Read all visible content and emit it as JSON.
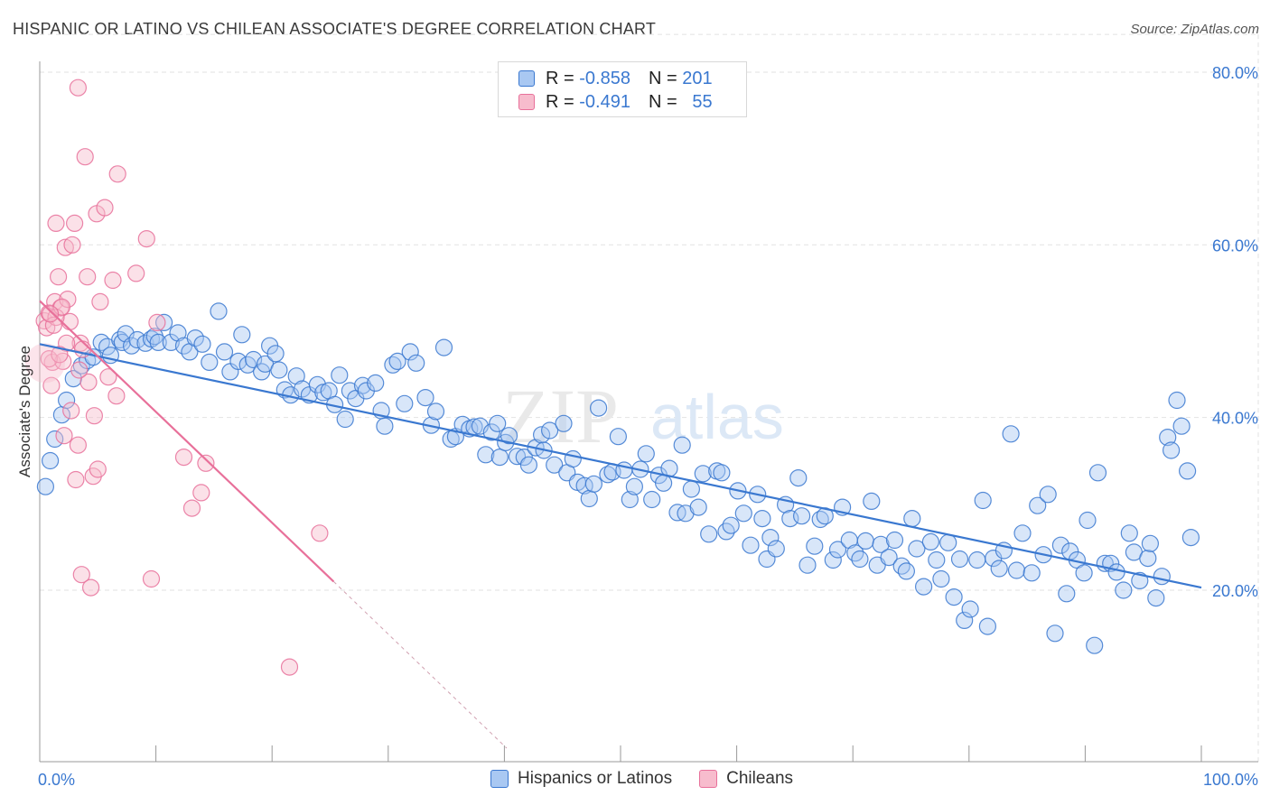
{
  "title": "HISPANIC OR LATINO VS CHILEAN ASSOCIATE'S DEGREE CORRELATION CHART",
  "source": "Source: ZipAtlas.com",
  "watermark": {
    "zip": "ZIP",
    "atlas": "atlas"
  },
  "legend_top": {
    "rows": [
      {
        "r_label": "R =",
        "r_value": "-0.858",
        "n_label": "N =",
        "n_value": "201"
      },
      {
        "r_label": "R =",
        "r_value": "-0.491",
        "n_label": "N =",
        "n_value": "55"
      }
    ]
  },
  "colors": {
    "blue": "#3a78d0",
    "blue_fill": "#a9c8f2",
    "pink": "#e8709a",
    "pink_fill": "#f7bccd",
    "grid": "#e2e2e2",
    "axis_label": "#3a78d0"
  },
  "chart_data": {
    "type": "scatter",
    "xlabel": "",
    "ylabel": "Associate's Degree",
    "xlim": [
      0,
      100
    ],
    "ylim": [
      0,
      85
    ],
    "x_tick_labels": [
      {
        "value": 0,
        "label": "0.0%"
      },
      {
        "value": 100,
        "label": "100.0%"
      }
    ],
    "y_tick_labels": [
      {
        "value": 20,
        "label": "20.0%"
      },
      {
        "value": 40,
        "label": "40.0%"
      },
      {
        "value": 60,
        "label": "60.0%"
      },
      {
        "value": 80,
        "label": "80.0%"
      }
    ],
    "grid": true,
    "legend": "bottom",
    "series": [
      {
        "name": "Hispanics or Latinos",
        "color": "#3a78d0",
        "trend": {
          "x0": 0,
          "y0": 48.5,
          "x1": 100,
          "y1": 20.3
        },
        "points": [
          [
            0.5,
            32
          ],
          [
            0.9,
            35
          ],
          [
            1.3,
            37.5
          ],
          [
            1.9,
            40.3
          ],
          [
            2.3,
            42
          ],
          [
            2.9,
            44.5
          ],
          [
            3.6,
            46
          ],
          [
            4.1,
            46.6
          ],
          [
            4.6,
            47
          ],
          [
            5.3,
            48.7
          ],
          [
            5.8,
            48.2
          ],
          [
            6.1,
            47.2
          ],
          [
            6.9,
            49
          ],
          [
            7.1,
            48.7
          ],
          [
            7.4,
            49.7
          ],
          [
            7.9,
            48.3
          ],
          [
            8.4,
            49
          ],
          [
            9.1,
            48.6
          ],
          [
            9.6,
            49.1
          ],
          [
            9.9,
            49.4
          ],
          [
            10.2,
            48.7
          ],
          [
            10.7,
            51
          ],
          [
            11.3,
            48.7
          ],
          [
            11.9,
            49.8
          ],
          [
            12.4,
            48.3
          ],
          [
            12.9,
            47.6
          ],
          [
            13.4,
            49.2
          ],
          [
            14.0,
            48.5
          ],
          [
            14.6,
            46.4
          ],
          [
            15.4,
            52.3
          ],
          [
            15.9,
            47.6
          ],
          [
            16.4,
            45.3
          ],
          [
            17.1,
            46.5
          ],
          [
            17.4,
            49.6
          ],
          [
            17.9,
            46.1
          ],
          [
            18.4,
            46.7
          ],
          [
            19.1,
            45.3
          ],
          [
            19.4,
            46.2
          ],
          [
            19.8,
            48.3
          ],
          [
            20.3,
            47.4
          ],
          [
            20.6,
            45.5
          ],
          [
            21.1,
            43.2
          ],
          [
            21.6,
            42.6
          ],
          [
            22.1,
            44.8
          ],
          [
            22.6,
            43.3
          ],
          [
            23.2,
            42.6
          ],
          [
            23.9,
            43.8
          ],
          [
            24.4,
            42.9
          ],
          [
            24.9,
            43.1
          ],
          [
            25.4,
            41.5
          ],
          [
            25.8,
            44.9
          ],
          [
            26.3,
            39.8
          ],
          [
            26.7,
            43.1
          ],
          [
            27.2,
            42.2
          ],
          [
            27.8,
            43.7
          ],
          [
            28.1,
            43.1
          ],
          [
            28.9,
            44
          ],
          [
            29.4,
            40.8
          ],
          [
            29.7,
            39
          ],
          [
            30.4,
            46.1
          ],
          [
            30.8,
            46.5
          ],
          [
            31.4,
            41.6
          ],
          [
            31.9,
            47.6
          ],
          [
            32.4,
            46.3
          ],
          [
            33.2,
            42.3
          ],
          [
            33.7,
            39.1
          ],
          [
            34.1,
            40.7
          ],
          [
            34.8,
            48.1
          ],
          [
            35.4,
            37.5
          ],
          [
            35.8,
            37.8
          ],
          [
            36.4,
            39.2
          ],
          [
            37.0,
            38.7
          ],
          [
            37.4,
            38.9
          ],
          [
            37.9,
            39
          ],
          [
            38.4,
            35.7
          ],
          [
            38.9,
            38.3
          ],
          [
            39.4,
            39.3
          ],
          [
            39.6,
            35.4
          ],
          [
            40.1,
            37.1
          ],
          [
            40.4,
            37.9
          ],
          [
            41.1,
            35.5
          ],
          [
            41.7,
            35.4
          ],
          [
            42.1,
            34.5
          ],
          [
            42.7,
            36.5
          ],
          [
            43.2,
            38
          ],
          [
            43.4,
            36.2
          ],
          [
            43.9,
            38.5
          ],
          [
            44.3,
            34.5
          ],
          [
            45.1,
            39.3
          ],
          [
            45.4,
            33.6
          ],
          [
            45.9,
            35.2
          ],
          [
            46.3,
            32.5
          ],
          [
            46.9,
            32.1
          ],
          [
            47.3,
            30.6
          ],
          [
            47.7,
            32.3
          ],
          [
            48.1,
            41.1
          ],
          [
            48.9,
            33.4
          ],
          [
            49.3,
            33.7
          ],
          [
            49.8,
            37.8
          ],
          [
            50.3,
            33.9
          ],
          [
            50.8,
            30.5
          ],
          [
            51.2,
            32
          ],
          [
            51.7,
            34
          ],
          [
            52.2,
            35.8
          ],
          [
            52.7,
            30.5
          ],
          [
            53.3,
            33.3
          ],
          [
            53.7,
            32.4
          ],
          [
            54.2,
            34.1
          ],
          [
            54.9,
            29
          ],
          [
            55.3,
            36.8
          ],
          [
            55.6,
            28.9
          ],
          [
            56.1,
            31.7
          ],
          [
            56.7,
            29.6
          ],
          [
            57.1,
            33.5
          ],
          [
            57.6,
            26.5
          ],
          [
            58.3,
            33.8
          ],
          [
            58.7,
            33.6
          ],
          [
            59.1,
            26.8
          ],
          [
            59.5,
            27.5
          ],
          [
            60.1,
            31.5
          ],
          [
            60.6,
            28.9
          ],
          [
            61.2,
            25.2
          ],
          [
            61.8,
            31.1
          ],
          [
            62.2,
            28.3
          ],
          [
            62.6,
            23.6
          ],
          [
            62.9,
            26.1
          ],
          [
            63.4,
            24.8
          ],
          [
            64.2,
            29.9
          ],
          [
            64.6,
            28.3
          ],
          [
            65.3,
            33
          ],
          [
            65.6,
            28.6
          ],
          [
            66.1,
            22.9
          ],
          [
            66.7,
            25.1
          ],
          [
            67.2,
            28.2
          ],
          [
            67.6,
            28.6
          ],
          [
            68.3,
            23.5
          ],
          [
            68.7,
            24.7
          ],
          [
            69.1,
            29.6
          ],
          [
            69.7,
            25.8
          ],
          [
            70.2,
            24.3
          ],
          [
            70.6,
            23.6
          ],
          [
            71.1,
            25.7
          ],
          [
            71.6,
            30.3
          ],
          [
            72.1,
            22.9
          ],
          [
            72.4,
            25.3
          ],
          [
            73.1,
            23.8
          ],
          [
            73.6,
            25.8
          ],
          [
            74.2,
            22.8
          ],
          [
            74.6,
            22.2
          ],
          [
            75.1,
            28.3
          ],
          [
            75.5,
            24.8
          ],
          [
            76.1,
            20.4
          ],
          [
            76.7,
            25.6
          ],
          [
            77.2,
            23.5
          ],
          [
            77.6,
            21.3
          ],
          [
            78.2,
            25.5
          ],
          [
            78.7,
            19.2
          ],
          [
            79.2,
            23.6
          ],
          [
            79.6,
            16.5
          ],
          [
            80.1,
            17.8
          ],
          [
            80.7,
            23.5
          ],
          [
            81.2,
            30.4
          ],
          [
            81.6,
            15.8
          ],
          [
            82.1,
            23.7
          ],
          [
            82.6,
            22.5
          ],
          [
            83.0,
            24.6
          ],
          [
            83.6,
            38.1
          ],
          [
            84.1,
            22.3
          ],
          [
            84.6,
            26.6
          ],
          [
            85.4,
            22
          ],
          [
            85.9,
            29.8
          ],
          [
            86.4,
            24.1
          ],
          [
            86.8,
            31.1
          ],
          [
            87.4,
            15
          ],
          [
            87.9,
            25.2
          ],
          [
            88.4,
            19.6
          ],
          [
            88.7,
            24.5
          ],
          [
            89.3,
            23.5
          ],
          [
            89.9,
            22
          ],
          [
            90.2,
            28.1
          ],
          [
            90.8,
            13.6
          ],
          [
            91.1,
            33.6
          ],
          [
            91.7,
            23.1
          ],
          [
            92.2,
            23.1
          ],
          [
            92.7,
            22.1
          ],
          [
            93.3,
            20
          ],
          [
            93.8,
            26.6
          ],
          [
            94.2,
            24.4
          ],
          [
            94.7,
            21.1
          ],
          [
            95.4,
            23.7
          ],
          [
            95.6,
            25.4
          ],
          [
            96.1,
            19.1
          ],
          [
            96.6,
            21.6
          ],
          [
            97.1,
            37.7
          ],
          [
            97.4,
            36.2
          ],
          [
            97.9,
            42
          ],
          [
            98.3,
            39
          ],
          [
            98.8,
            33.8
          ],
          [
            99.1,
            26.1
          ]
        ]
      },
      {
        "name": "Chileans",
        "color": "#e8709a",
        "trend": {
          "x0": 0,
          "y0": 53.5,
          "x1": 25.3,
          "y1": 21.0
        },
        "trend_dashed": {
          "x0": 25.3,
          "y0": 21.0,
          "x1": 40.2,
          "y1": 1.7
        },
        "points": [
          [
            0.4,
            51.2
          ],
          [
            0.6,
            50.4
          ],
          [
            0.8,
            52.1
          ],
          [
            1.0,
            43.7
          ],
          [
            1.1,
            46.4
          ],
          [
            1.3,
            53.4
          ],
          [
            1.4,
            62.5
          ],
          [
            1.6,
            56.3
          ],
          [
            1.8,
            52.7
          ],
          [
            2.0,
            46.5
          ],
          [
            2.1,
            37.9
          ],
          [
            2.2,
            59.7
          ],
          [
            2.4,
            53.7
          ],
          [
            2.6,
            51.1
          ],
          [
            2.8,
            60
          ],
          [
            3.0,
            62.5
          ],
          [
            3.1,
            32.8
          ],
          [
            3.3,
            36.8
          ],
          [
            3.5,
            48.6
          ],
          [
            3.6,
            21.8
          ],
          [
            3.7,
            47.9
          ],
          [
            3.9,
            70.2
          ],
          [
            4.1,
            56.3
          ],
          [
            4.2,
            44.1
          ],
          [
            4.4,
            20.3
          ],
          [
            4.6,
            33.2
          ],
          [
            4.7,
            40.2
          ],
          [
            4.9,
            63.6
          ],
          [
            5.0,
            34
          ],
          [
            5.2,
            53.4
          ],
          [
            5.6,
            64.3
          ],
          [
            5.9,
            44.7
          ],
          [
            6.3,
            55.9
          ],
          [
            6.6,
            42.5
          ],
          [
            6.7,
            68.2
          ],
          [
            8.3,
            56.7
          ],
          [
            9.2,
            60.7
          ],
          [
            9.6,
            21.3
          ],
          [
            10.1,
            51
          ],
          [
            12.4,
            35.4
          ],
          [
            13.1,
            29.5
          ],
          [
            13.9,
            31.3
          ],
          [
            14.3,
            34.7
          ],
          [
            21.5,
            11.1
          ],
          [
            24.1,
            26.6
          ],
          [
            3.3,
            78.2
          ],
          [
            0.8,
            46.8
          ],
          [
            1.4,
            51.6
          ],
          [
            1.9,
            52.8
          ],
          [
            2.7,
            40.8
          ],
          [
            3.4,
            45.5
          ],
          [
            1.2,
            50.7
          ],
          [
            0.9,
            52
          ],
          [
            2.3,
            48.6
          ],
          [
            1.7,
            47.3
          ]
        ]
      }
    ]
  },
  "legend_bottom": {
    "items": [
      {
        "label": "Hispanics or Latinos"
      },
      {
        "label": "Chileans"
      }
    ]
  }
}
